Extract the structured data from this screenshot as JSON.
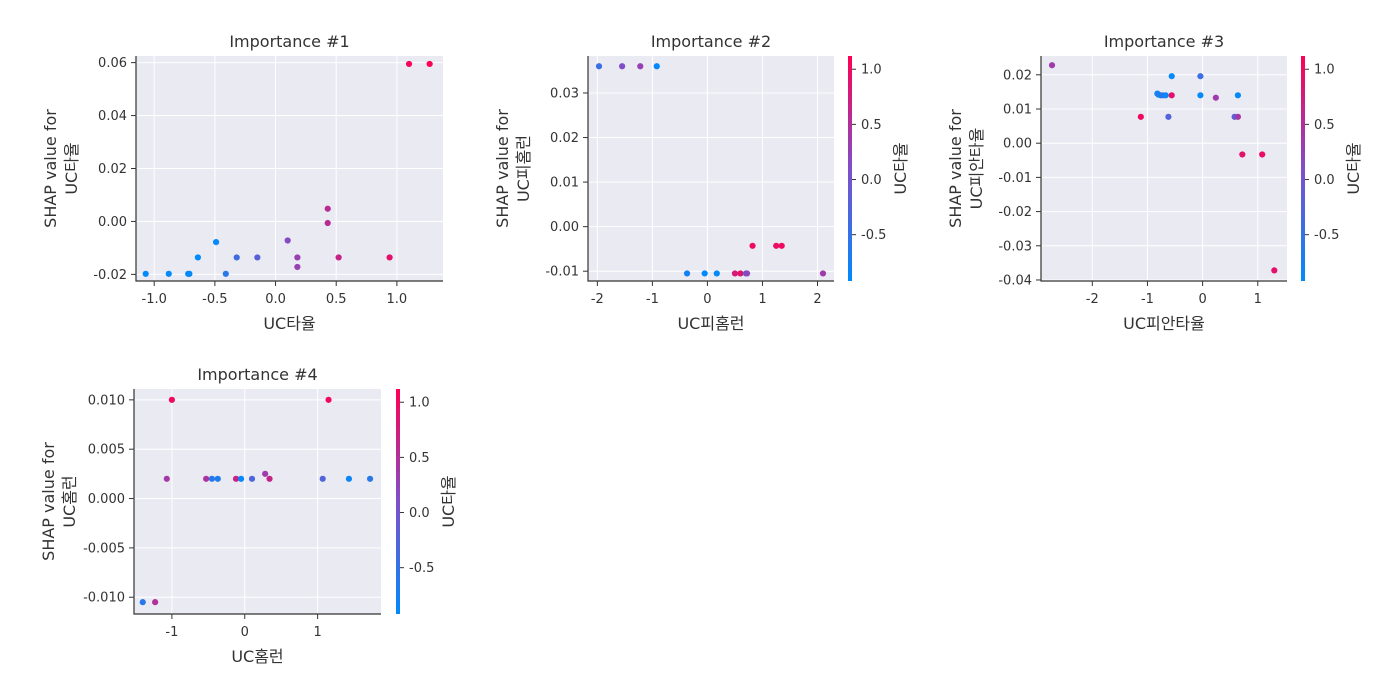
{
  "colormap": {
    "low": "#008afb",
    "mid": "#7f4fc8",
    "high": "#ff0052"
  },
  "chart_data": [
    {
      "type": "scatter",
      "title": "Importance #1",
      "xlabel": "UC타율",
      "ylabel": [
        "SHAP value for",
        "UC타율"
      ],
      "xlim": [
        -1.15,
        1.38
      ],
      "ylim": [
        -0.0225,
        0.0625
      ],
      "xticks": [
        -1.0,
        -0.5,
        0.0,
        0.5,
        1.0
      ],
      "xtick_labels": [
        "-1.0",
        "-0.5",
        "0.0",
        "0.5",
        "1.0"
      ],
      "yticks": [
        -0.02,
        0.0,
        0.02,
        0.04,
        0.06
      ],
      "ytick_labels": [
        "-0.02",
        "0.00",
        "0.02",
        "0.04",
        "0.06"
      ],
      "grid": true,
      "colorbar": null,
      "points": [
        {
          "x": -1.07,
          "y": -0.0198,
          "c": -0.9
        },
        {
          "x": -0.88,
          "y": -0.0198,
          "c": -0.9
        },
        {
          "x": -0.72,
          "y": -0.0198,
          "c": -0.9
        },
        {
          "x": -0.71,
          "y": -0.0198,
          "c": -0.9
        },
        {
          "x": -0.64,
          "y": -0.0136,
          "c": -0.9
        },
        {
          "x": -0.49,
          "y": -0.0078,
          "c": -0.9
        },
        {
          "x": -0.41,
          "y": -0.0198,
          "c": -0.6
        },
        {
          "x": -0.32,
          "y": -0.0136,
          "c": -0.4
        },
        {
          "x": -0.15,
          "y": -0.0136,
          "c": -0.2
        },
        {
          "x": 0.1,
          "y": -0.0072,
          "c": 0.15
        },
        {
          "x": 0.18,
          "y": -0.0136,
          "c": 0.3
        },
        {
          "x": 0.18,
          "y": -0.0172,
          "c": 0.3
        },
        {
          "x": 0.43,
          "y": 0.0048,
          "c": 0.55
        },
        {
          "x": 0.43,
          "y": -0.0006,
          "c": 0.55
        },
        {
          "x": 0.52,
          "y": -0.0136,
          "c": 0.65
        },
        {
          "x": 0.94,
          "y": -0.0136,
          "c": 0.9
        },
        {
          "x": 1.1,
          "y": 0.0595,
          "c": 1.05
        },
        {
          "x": 1.27,
          "y": 0.0595,
          "c": 1.1
        }
      ]
    },
    {
      "type": "scatter",
      "title": "Importance #2",
      "xlabel": "UC피홈런",
      "ylabel": [
        "SHAP value for",
        "UC피홈런"
      ],
      "xlim": [
        -2.17,
        2.3
      ],
      "ylim": [
        -0.0122,
        0.0383
      ],
      "xticks": [
        -2,
        -1,
        0,
        1,
        2
      ],
      "xtick_labels": [
        "-2",
        "-1",
        "0",
        "1",
        "2"
      ],
      "yticks": [
        -0.01,
        0.0,
        0.01,
        0.02,
        0.03
      ],
      "ytick_labels": [
        "-0.01",
        "0.00",
        "0.01",
        "0.02",
        "0.03"
      ],
      "grid": true,
      "colorbar": {
        "label": "UC타율",
        "range": [
          -0.92,
          1.12
        ],
        "ticks": [
          -0.5,
          0.0,
          0.5,
          1.0
        ],
        "tick_labels": [
          "-0.5",
          "0.0",
          "0.5",
          "1.0"
        ]
      },
      "points": [
        {
          "x": -1.97,
          "y": 0.036,
          "c": -0.45
        },
        {
          "x": -1.55,
          "y": 0.036,
          "c": 0.1
        },
        {
          "x": -1.22,
          "y": 0.036,
          "c": 0.3
        },
        {
          "x": -0.92,
          "y": 0.036,
          "c": -0.9
        },
        {
          "x": -0.37,
          "y": -0.0105,
          "c": -0.75
        },
        {
          "x": -0.05,
          "y": -0.0105,
          "c": -0.9
        },
        {
          "x": 0.17,
          "y": -0.0105,
          "c": -0.9
        },
        {
          "x": 0.5,
          "y": -0.0105,
          "c": 0.8
        },
        {
          "x": 0.6,
          "y": -0.0105,
          "c": 0.9
        },
        {
          "x": 0.7,
          "y": -0.0105,
          "c": -0.3
        },
        {
          "x": 0.72,
          "y": -0.0105,
          "c": 0.2
        },
        {
          "x": 0.82,
          "y": -0.0043,
          "c": 1.0
        },
        {
          "x": 1.25,
          "y": -0.0043,
          "c": 0.95
        },
        {
          "x": 1.35,
          "y": -0.0043,
          "c": 1.0
        },
        {
          "x": 2.1,
          "y": -0.0105,
          "c": 0.35
        }
      ]
    },
    {
      "type": "scatter",
      "title": "Importance #3",
      "xlabel": "UC피안타율",
      "ylabel": [
        "SHAP value for",
        "UC피안타율"
      ],
      "xlim": [
        -2.93,
        1.53
      ],
      "ylim": [
        -0.0403,
        0.0255
      ],
      "xticks": [
        -2,
        -1,
        0,
        1
      ],
      "xtick_labels": [
        "-2",
        "-1",
        "0",
        "1"
      ],
      "yticks": [
        -0.04,
        -0.03,
        -0.02,
        -0.01,
        0.0,
        0.01,
        0.02
      ],
      "ytick_labels": [
        "-0.04",
        "-0.03",
        "-0.02",
        "-0.01",
        "0.00",
        "0.01",
        "0.02"
      ],
      "grid": true,
      "colorbar": {
        "label": "UC타율",
        "range": [
          -0.92,
          1.12
        ],
        "ticks": [
          -0.5,
          0.0,
          0.5,
          1.0
        ],
        "tick_labels": [
          "-0.5",
          "0.0",
          "0.5",
          "1.0"
        ]
      },
      "points": [
        {
          "x": -2.73,
          "y": 0.0228,
          "c": 0.35
        },
        {
          "x": -1.12,
          "y": 0.0077,
          "c": 1.0
        },
        {
          "x": -0.82,
          "y": 0.0145,
          "c": -0.9
        },
        {
          "x": -0.8,
          "y": 0.0142,
          "c": -0.6
        },
        {
          "x": -0.76,
          "y": 0.014,
          "c": -0.9
        },
        {
          "x": -0.72,
          "y": 0.014,
          "c": -0.5
        },
        {
          "x": -0.67,
          "y": 0.014,
          "c": -0.85
        },
        {
          "x": -0.62,
          "y": 0.0077,
          "c": -0.25
        },
        {
          "x": -0.56,
          "y": 0.0196,
          "c": -0.9
        },
        {
          "x": -0.56,
          "y": 0.014,
          "c": 0.9
        },
        {
          "x": -0.04,
          "y": 0.0196,
          "c": -0.45
        },
        {
          "x": -0.04,
          "y": 0.014,
          "c": -0.9
        },
        {
          "x": 0.24,
          "y": 0.0133,
          "c": 0.35
        },
        {
          "x": 0.58,
          "y": 0.0077,
          "c": -0.2
        },
        {
          "x": 0.64,
          "y": 0.0077,
          "c": 0.4
        },
        {
          "x": 0.64,
          "y": 0.014,
          "c": -0.9
        },
        {
          "x": 0.72,
          "y": -0.0033,
          "c": 0.9
        },
        {
          "x": 1.08,
          "y": -0.0033,
          "c": 0.95
        },
        {
          "x": 1.3,
          "y": -0.0372,
          "c": 0.9
        }
      ]
    },
    {
      "type": "scatter",
      "title": "Importance #4",
      "xlabel": "UC홈런",
      "ylabel": [
        "SHAP value for",
        "UC홈런"
      ],
      "xlim": [
        -1.52,
        1.87
      ],
      "ylim": [
        -0.0117,
        0.0111
      ],
      "xticks": [
        -1,
        0,
        1
      ],
      "xtick_labels": [
        "-1",
        "0",
        "1"
      ],
      "yticks": [
        -0.01,
        -0.005,
        0.0,
        0.005,
        0.01
      ],
      "ytick_labels": [
        "-0.010",
        "-0.005",
        "0.000",
        "0.005",
        "0.010"
      ],
      "grid": true,
      "colorbar": {
        "label": "UC타율",
        "range": [
          -0.92,
          1.12
        ],
        "ticks": [
          -0.5,
          0.0,
          0.5,
          1.0
        ],
        "tick_labels": [
          "-0.5",
          "0.0",
          "0.5",
          "1.0"
        ]
      },
      "points": [
        {
          "x": -1.4,
          "y": -0.0105,
          "c": -0.6
        },
        {
          "x": -1.23,
          "y": -0.0105,
          "c": 0.5
        },
        {
          "x": -1.07,
          "y": 0.002,
          "c": 0.4
        },
        {
          "x": -1.0,
          "y": 0.01,
          "c": 1.0
        },
        {
          "x": -0.53,
          "y": 0.002,
          "c": 0.45
        },
        {
          "x": -0.45,
          "y": 0.002,
          "c": -0.6
        },
        {
          "x": -0.37,
          "y": 0.002,
          "c": -0.7
        },
        {
          "x": -0.12,
          "y": 0.002,
          "c": 0.7
        },
        {
          "x": -0.05,
          "y": 0.002,
          "c": -0.9
        },
        {
          "x": 0.1,
          "y": 0.002,
          "c": -0.3
        },
        {
          "x": 0.28,
          "y": 0.0025,
          "c": 0.35
        },
        {
          "x": 0.34,
          "y": 0.002,
          "c": 0.65
        },
        {
          "x": 1.07,
          "y": 0.002,
          "c": -0.25
        },
        {
          "x": 1.15,
          "y": 0.01,
          "c": 1.0
        },
        {
          "x": 1.43,
          "y": 0.002,
          "c": -0.85
        },
        {
          "x": 1.72,
          "y": 0.002,
          "c": -0.6
        }
      ]
    }
  ]
}
